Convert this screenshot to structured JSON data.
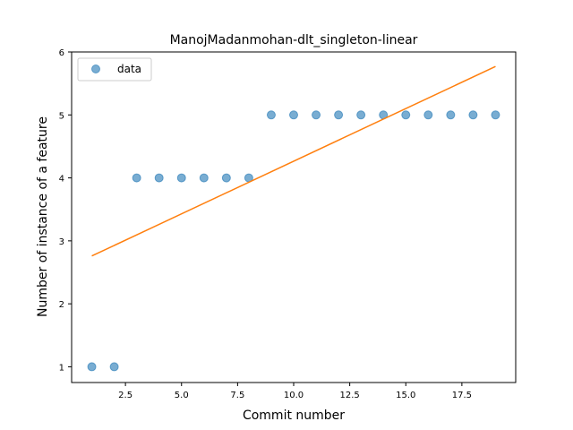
{
  "chart_data": {
    "type": "scatter",
    "title": "ManojMadanmohan-dlt_singleton-linear",
    "xlabel": "Commit number",
    "ylabel": "Number of instance of a feature",
    "xlim": [
      0.1,
      19.9
    ],
    "ylim": [
      0.75,
      6.0
    ],
    "xticks": [
      2.5,
      5.0,
      7.5,
      10.0,
      12.5,
      15.0,
      17.5
    ],
    "xtick_labels": [
      "2.5",
      "5.0",
      "7.5",
      "10.0",
      "12.5",
      "15.0",
      "17.5"
    ],
    "yticks": [
      1,
      2,
      3,
      4,
      5,
      6
    ],
    "ytick_labels": [
      "1",
      "2",
      "3",
      "4",
      "5",
      "6"
    ],
    "grid": false,
    "legend": {
      "position": "top-left",
      "entries": [
        "data"
      ]
    },
    "series": [
      {
        "name": "data",
        "kind": "scatter",
        "color": "#1f77b4",
        "x": [
          1,
          2,
          3,
          4,
          5,
          6,
          7,
          8,
          9,
          10,
          11,
          12,
          13,
          14,
          15,
          16,
          17,
          18,
          19
        ],
        "y": [
          1,
          1,
          4,
          4,
          4,
          4,
          4,
          4,
          5,
          5,
          5,
          5,
          5,
          5,
          5,
          5,
          5,
          5,
          5
        ]
      },
      {
        "kind": "line",
        "color": "#ff7f0e",
        "x": [
          1,
          19
        ],
        "y": [
          2.76,
          5.77
        ]
      }
    ]
  }
}
